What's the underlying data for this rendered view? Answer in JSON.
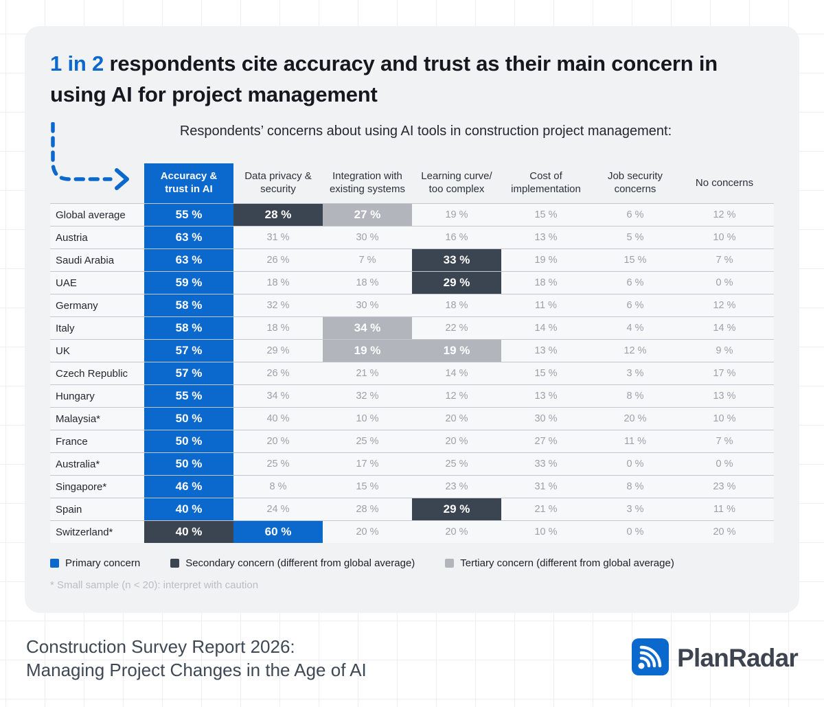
{
  "title": {
    "highlight": "1 in 2",
    "rest": "respondents cite accuracy and trust as their main concern in using AI for project management"
  },
  "subtitle": "Respondents’ concerns about using AI tools in construction project management:",
  "chart_data": {
    "type": "table",
    "title": "Respondents’ concerns about using AI tools in construction project management",
    "unit": "%",
    "columns": [
      "Accuracy & trust in AI",
      "Data privacy & security",
      "Integration with existing systems",
      "Learning curve/ too complex",
      "Cost of implementation",
      "Job security concerns",
      "No concerns"
    ],
    "rows": [
      {
        "label": "Global average",
        "values": [
          55,
          28,
          27,
          19,
          15,
          6,
          12
        ],
        "highlights": [
          "primary",
          "secondary",
          "tertiary",
          null,
          null,
          null,
          null
        ]
      },
      {
        "label": "Austria",
        "values": [
          63,
          31,
          30,
          16,
          13,
          5,
          10
        ],
        "highlights": [
          "primary",
          null,
          null,
          null,
          null,
          null,
          null
        ]
      },
      {
        "label": "Saudi Arabia",
        "values": [
          63,
          26,
          7,
          33,
          19,
          15,
          7
        ],
        "highlights": [
          "primary",
          null,
          null,
          "secondary",
          null,
          null,
          null
        ]
      },
      {
        "label": "UAE",
        "values": [
          59,
          18,
          18,
          29,
          18,
          6,
          0
        ],
        "highlights": [
          "primary",
          null,
          null,
          "secondary",
          null,
          null,
          null
        ]
      },
      {
        "label": "Germany",
        "values": [
          58,
          32,
          30,
          18,
          11,
          6,
          12
        ],
        "highlights": [
          "primary",
          null,
          null,
          null,
          null,
          null,
          null
        ]
      },
      {
        "label": "Italy",
        "values": [
          58,
          18,
          34,
          22,
          14,
          4,
          14
        ],
        "highlights": [
          "primary",
          null,
          "tertiary",
          null,
          null,
          null,
          null
        ]
      },
      {
        "label": "UK",
        "values": [
          57,
          29,
          19,
          19,
          13,
          12,
          9
        ],
        "highlights": [
          "primary",
          null,
          "tertiary",
          "tertiary",
          null,
          null,
          null
        ]
      },
      {
        "label": "Czech Republic",
        "values": [
          57,
          26,
          21,
          14,
          15,
          3,
          17
        ],
        "highlights": [
          "primary",
          null,
          null,
          null,
          null,
          null,
          null
        ]
      },
      {
        "label": "Hungary",
        "values": [
          55,
          34,
          32,
          12,
          13,
          8,
          13
        ],
        "highlights": [
          "primary",
          null,
          null,
          null,
          null,
          null,
          null
        ]
      },
      {
        "label": "Malaysia*",
        "values": [
          50,
          40,
          10,
          20,
          30,
          20,
          10
        ],
        "highlights": [
          "primary",
          null,
          null,
          null,
          null,
          null,
          null
        ]
      },
      {
        "label": "France",
        "values": [
          50,
          20,
          25,
          20,
          27,
          11,
          7
        ],
        "highlights": [
          "primary",
          null,
          null,
          null,
          null,
          null,
          null
        ]
      },
      {
        "label": "Australia*",
        "values": [
          50,
          25,
          17,
          25,
          33,
          0,
          0
        ],
        "highlights": [
          "primary",
          null,
          null,
          null,
          null,
          null,
          null
        ]
      },
      {
        "label": "Singapore*",
        "values": [
          46,
          8,
          15,
          23,
          31,
          8,
          23
        ],
        "highlights": [
          "primary",
          null,
          null,
          null,
          null,
          null,
          null
        ]
      },
      {
        "label": "Spain",
        "values": [
          40,
          24,
          28,
          29,
          21,
          3,
          11
        ],
        "highlights": [
          "primary",
          null,
          null,
          "secondary",
          null,
          null,
          null
        ]
      },
      {
        "label": "Switzerland*",
        "values": [
          40,
          60,
          20,
          20,
          10,
          0,
          20
        ],
        "highlights": [
          "secondary",
          "primary",
          null,
          null,
          null,
          null,
          null
        ]
      }
    ]
  },
  "legend": [
    {
      "label": "Primary concern",
      "color": "#0b68cc"
    },
    {
      "label": "Secondary concern (different from global average)",
      "color": "#3b4552"
    },
    {
      "label": "Tertiary concern (different from global average)",
      "color": "#b2b6bc"
    }
  ],
  "footnote": "* Small sample (n < 20): interpret with caution",
  "footer": {
    "line1": "Construction Survey Report 2026:",
    "line2": "Managing Project Changes in the Age of AI",
    "logo_text": "PlanRadar"
  },
  "colors": {
    "primary_blue": "#0b68cc",
    "secondary_dark": "#3b4552",
    "tertiary_gray": "#b2b6bc",
    "card_background": "#f1f2f4",
    "value_text_gray": "#9ba1a9"
  }
}
